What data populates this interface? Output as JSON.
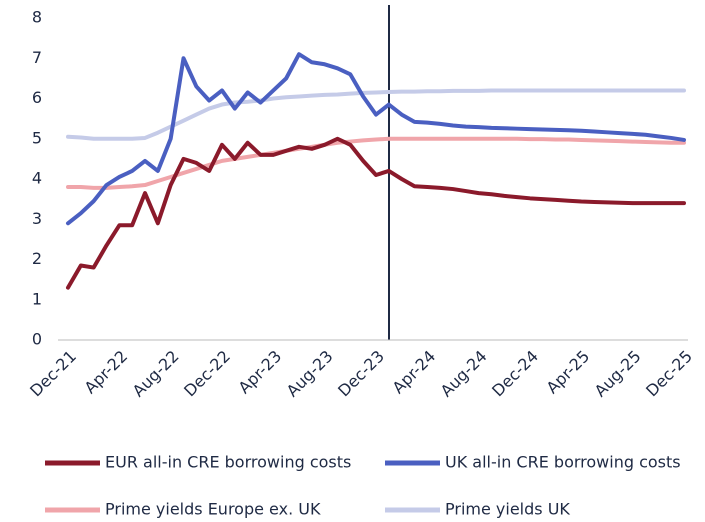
{
  "chart_data": {
    "type": "line",
    "categories": [
      "Dec-21",
      null,
      null,
      null,
      "Apr-22",
      null,
      null,
      null,
      "Aug-22",
      null,
      null,
      null,
      "Dec-22",
      null,
      null,
      null,
      "Apr-23",
      null,
      null,
      null,
      "Aug-23",
      null,
      null,
      null,
      "Dec-23",
      null,
      null,
      null,
      "Apr-24",
      null,
      null,
      null,
      "Aug-24",
      null,
      null,
      null,
      "Dec-24",
      null,
      null,
      null,
      "Apr-25",
      null,
      null,
      null,
      "Aug-25",
      null,
      null,
      null,
      "Dec-25"
    ],
    "series": [
      {
        "name": "EUR all-in CRE borrowing costs",
        "color": "#8b1a2b",
        "values": [
          1.3,
          1.85,
          1.8,
          2.35,
          2.85,
          2.85,
          3.65,
          2.9,
          3.85,
          4.5,
          4.4,
          4.2,
          4.85,
          4.5,
          4.9,
          4.6,
          4.6,
          4.7,
          4.8,
          4.75,
          4.85,
          5.0,
          4.85,
          4.45,
          4.1,
          4.2,
          4.0,
          3.82,
          3.8,
          3.78,
          3.75,
          3.7,
          3.65,
          3.62,
          3.58,
          3.55,
          3.52,
          3.5,
          3.48,
          3.46,
          3.44,
          3.43,
          3.42,
          3.41,
          3.4,
          3.4,
          3.4,
          3.4,
          3.4
        ]
      },
      {
        "name": "UK all-in CRE borrowing costs",
        "color": "#4a5fc1",
        "values": [
          2.9,
          3.15,
          3.45,
          3.85,
          4.05,
          4.2,
          4.45,
          4.2,
          5.0,
          7.0,
          6.3,
          5.95,
          6.2,
          5.75,
          6.15,
          5.9,
          6.2,
          6.5,
          7.1,
          6.9,
          6.85,
          6.75,
          6.6,
          6.05,
          5.6,
          5.85,
          5.6,
          5.42,
          5.4,
          5.37,
          5.33,
          5.3,
          5.29,
          5.27,
          5.26,
          5.25,
          5.24,
          5.23,
          5.22,
          5.21,
          5.2,
          5.18,
          5.16,
          5.14,
          5.12,
          5.1,
          5.06,
          5.02,
          4.97
        ]
      },
      {
        "name": "Prime yields Europe ex. UK",
        "color": "#f0a5aa",
        "values": [
          3.8,
          3.8,
          3.78,
          3.78,
          3.8,
          3.82,
          3.85,
          3.95,
          4.05,
          4.15,
          4.25,
          4.35,
          4.45,
          4.5,
          4.55,
          4.6,
          4.65,
          4.7,
          4.75,
          4.8,
          4.85,
          4.9,
          4.93,
          4.96,
          4.98,
          5.0,
          5.0,
          5.0,
          5.0,
          5.0,
          5.0,
          5.0,
          5.0,
          5.0,
          5.0,
          5.0,
          4.99,
          4.99,
          4.98,
          4.98,
          4.97,
          4.96,
          4.95,
          4.94,
          4.93,
          4.92,
          4.91,
          4.9,
          4.9
        ]
      },
      {
        "name": "Prime yields UK",
        "color": "#c5cbe8",
        "values": [
          5.05,
          5.03,
          5.0,
          5.0,
          5.0,
          5.0,
          5.02,
          5.15,
          5.3,
          5.45,
          5.6,
          5.75,
          5.85,
          5.9,
          5.92,
          5.95,
          6.0,
          6.03,
          6.05,
          6.07,
          6.09,
          6.1,
          6.12,
          6.14,
          6.15,
          6.16,
          6.17,
          6.17,
          6.18,
          6.18,
          6.19,
          6.19,
          6.19,
          6.2,
          6.2,
          6.2,
          6.2,
          6.2,
          6.2,
          6.2,
          6.2,
          6.2,
          6.2,
          6.2,
          6.2,
          6.2,
          6.2,
          6.2,
          6.2
        ]
      }
    ],
    "ylim": [
      0,
      8
    ],
    "yticks": [
      0,
      1,
      2,
      3,
      4,
      5,
      6,
      7,
      8
    ],
    "grid": false
  }
}
